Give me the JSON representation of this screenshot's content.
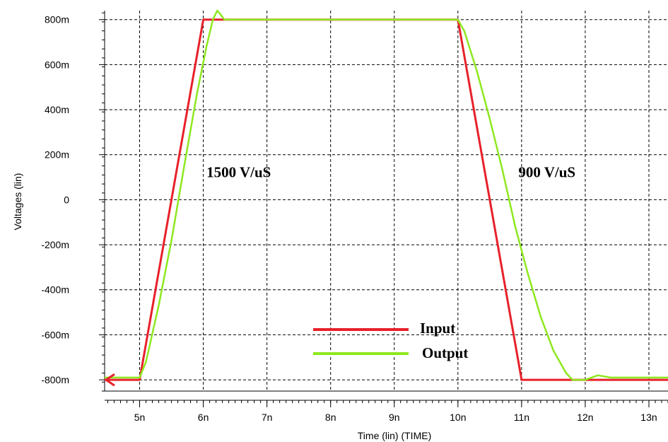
{
  "chart_data": {
    "type": "line",
    "xlabel": "Time (lin) (TIME)",
    "ylabel": "Voltages (lin)",
    "xlim": [
      4.45,
      13.3
    ],
    "ylim": [
      -0.85,
      0.84
    ],
    "x_ticks": [
      {
        "value": 5,
        "label": "5n"
      },
      {
        "value": 6,
        "label": "6n"
      },
      {
        "value": 7,
        "label": "7n"
      },
      {
        "value": 8,
        "label": "8n"
      },
      {
        "value": 9,
        "label": "9n"
      },
      {
        "value": 10,
        "label": "10n"
      },
      {
        "value": 11,
        "label": "11n"
      },
      {
        "value": 12,
        "label": "12n"
      },
      {
        "value": 13,
        "label": "13n"
      }
    ],
    "y_ticks": [
      {
        "value": 0.8,
        "label": "800m"
      },
      {
        "value": 0.6,
        "label": "600m"
      },
      {
        "value": 0.4,
        "label": "400m"
      },
      {
        "value": 0.2,
        "label": "200m"
      },
      {
        "value": 0.0,
        "label": "0"
      },
      {
        "value": -0.2,
        "label": "-200m"
      },
      {
        "value": -0.4,
        "label": "-400m"
      },
      {
        "value": -0.6,
        "label": "-600m"
      },
      {
        "value": -0.8,
        "label": "-800m"
      }
    ],
    "grid": true,
    "series": [
      {
        "name": "Input",
        "color": "#e8202a",
        "x": [
          4.45,
          5.0,
          6.0,
          10.0,
          11.0,
          13.3
        ],
        "y": [
          -0.8,
          -0.8,
          0.8,
          0.8,
          -0.8,
          -0.8
        ]
      },
      {
        "name": "Output",
        "color": "#8ee81e",
        "x": [
          4.45,
          5.0,
          5.1,
          5.3,
          5.5,
          5.7,
          5.9,
          6.05,
          6.15,
          6.22,
          6.28,
          6.33,
          10.0,
          10.1,
          10.3,
          10.5,
          10.7,
          10.9,
          11.1,
          11.3,
          11.5,
          11.7,
          11.8,
          12.0,
          12.2,
          12.4,
          13.3
        ],
        "y": [
          -0.79,
          -0.79,
          -0.72,
          -0.47,
          -0.18,
          0.15,
          0.47,
          0.68,
          0.8,
          0.84,
          0.82,
          0.8,
          0.8,
          0.75,
          0.57,
          0.36,
          0.13,
          -0.12,
          -0.33,
          -0.52,
          -0.67,
          -0.77,
          -0.8,
          -0.8,
          -0.78,
          -0.79,
          -0.79
        ]
      }
    ],
    "annotations": [
      {
        "text": "1500 V/uS",
        "x": 6.05,
        "y": 0.1
      },
      {
        "text": "900 V/uS",
        "x": 10.95,
        "y": 0.1
      }
    ],
    "legend": {
      "placement": "bottom-center",
      "entries": [
        {
          "label": "Input",
          "color": "#e8202a"
        },
        {
          "label": "Output",
          "color": "#8ee81e"
        }
      ]
    }
  }
}
